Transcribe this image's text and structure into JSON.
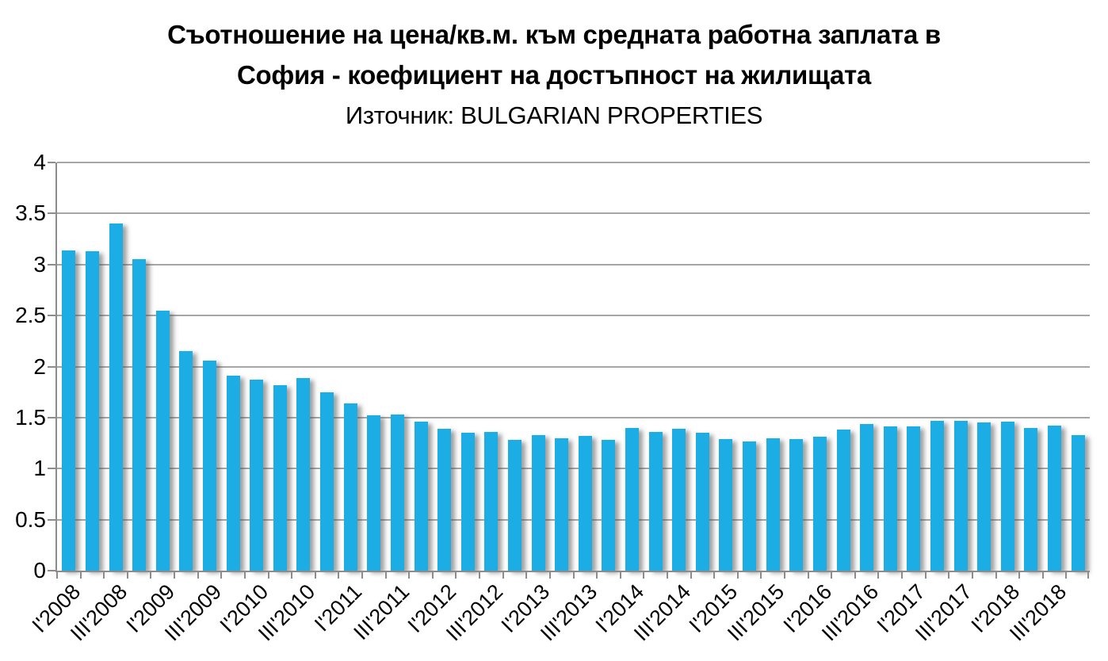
{
  "title": {
    "line1": "Съотношение на цена/кв.м. към средната работна заплата в",
    "line2": "София - коефициент на достъпност на жилищата",
    "source_line": "Източник: BULGARIAN PROPERTIES"
  },
  "chart_data": {
    "type": "bar",
    "title": "Съотношение на цена/кв.м. към средната работна заплата в София - коефициент на достъпност на жилищата",
    "subtitle": "Източник: BULGARIAN PROPERTIES",
    "xlabel": "",
    "ylabel": "",
    "ylim": [
      0,
      4
    ],
    "y_ticks": [
      0,
      0.5,
      1,
      1.5,
      2,
      2.5,
      3,
      3.5,
      4
    ],
    "grid": "horizontal",
    "legend_position": "none",
    "bar_color": "#1CADE4",
    "gridline_color": "#a6a6a6",
    "axis_color": "#8c8c8c",
    "categories": [
      "I'2008",
      "II'2008",
      "III'2008",
      "IV'2008",
      "I'2009",
      "II'2009",
      "III'2009",
      "IV'2009",
      "I'2010",
      "II'2010",
      "III'2010",
      "IV'2010",
      "I'2011",
      "II'2011",
      "III'2011",
      "IV'2011",
      "I'2012",
      "II'2012",
      "III'2012",
      "IV'2012",
      "I'2013",
      "II'2013",
      "III'2013",
      "IV'2013",
      "I'2014",
      "II'2014",
      "III'2014",
      "IV'2014",
      "I'2015",
      "II'2015",
      "III'2015",
      "IV'2015",
      "I'2016",
      "II'2016",
      "III'2016",
      "IV'2016",
      "I'2017",
      "II'2017",
      "III'2017",
      "IV'2017",
      "I'2018",
      "II'2018",
      "III'2018",
      "IV'2018"
    ],
    "values": [
      3.14,
      3.13,
      3.4,
      3.05,
      2.55,
      2.15,
      2.06,
      1.91,
      1.87,
      1.82,
      1.89,
      1.75,
      1.64,
      1.52,
      1.53,
      1.46,
      1.39,
      1.35,
      1.36,
      1.28,
      1.33,
      1.3,
      1.32,
      1.28,
      1.4,
      1.36,
      1.39,
      1.35,
      1.29,
      1.27,
      1.3,
      1.29,
      1.31,
      1.38,
      1.44,
      1.41,
      1.41,
      1.47,
      1.47,
      1.45,
      1.46,
      1.4,
      1.42,
      1.33
    ],
    "x_tick_labels": [
      "I'2008",
      "III'2008",
      "I'2009",
      "III'2009",
      "I'2010",
      "III'2010",
      "I'2011",
      "III'2011",
      "I'2012",
      "III'2012",
      "I'2013",
      "III'2013",
      "I'2014",
      "III'2014",
      "I'2015",
      "III'2015",
      "I'2016",
      "III'2016",
      "I'2017",
      "III'2017",
      "I'2018",
      "III'2018"
    ],
    "x_label_every_n_categories": 2
  }
}
